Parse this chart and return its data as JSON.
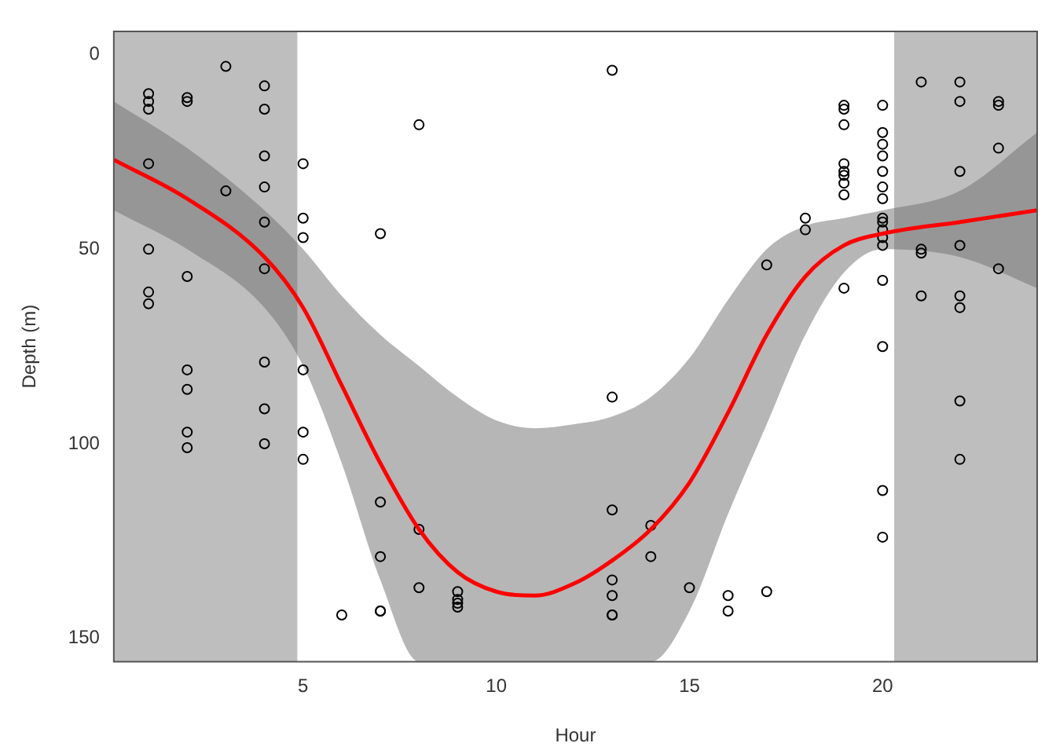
{
  "chart_data": {
    "type": "scatter",
    "xlabel": "Hour",
    "ylabel": "Depth (m)",
    "xlim": [
      0.1,
      24
    ],
    "ylim": [
      156,
      -6
    ],
    "xticks": [
      5,
      10,
      15,
      20
    ],
    "yticks": [
      0,
      50,
      100,
      150
    ],
    "grid": false,
    "legend": false,
    "bands": [
      {
        "axis": "x",
        "from": 0.1,
        "to": 4.85,
        "color": "#bebebe"
      },
      {
        "axis": "x",
        "from": 20.3,
        "to": 24,
        "color": "#bebebe"
      }
    ],
    "series": [
      {
        "marker": "circle",
        "color": "#000000",
        "x": [
          1,
          1,
          1,
          1,
          1,
          1,
          1,
          2,
          2,
          2,
          2,
          2,
          2,
          2,
          3,
          3,
          4,
          4,
          4,
          4,
          4,
          4,
          4,
          4,
          4,
          5,
          5,
          5,
          5,
          5,
          5,
          6,
          7,
          7,
          7,
          7,
          7,
          8,
          8,
          8,
          9,
          9,
          9,
          9,
          13,
          13,
          13,
          13,
          13,
          13,
          13,
          14,
          14,
          15,
          16,
          16,
          17,
          17,
          18,
          18,
          19,
          19,
          19,
          19,
          19,
          19,
          19,
          19,
          19,
          20,
          20,
          20,
          20,
          20,
          20,
          20,
          20,
          20,
          20,
          20,
          20,
          20,
          20,
          20,
          20,
          21,
          21,
          21,
          21,
          22,
          22,
          22,
          22,
          22,
          22,
          22,
          22,
          23,
          23,
          23,
          23
        ],
        "values": [
          10,
          12,
          14,
          28,
          50,
          61,
          64,
          11,
          12,
          57,
          81,
          86,
          97,
          101,
          3,
          35,
          8,
          14,
          26,
          34,
          43,
          55,
          79,
          91,
          100,
          28,
          42,
          47,
          81,
          97,
          104,
          144,
          46,
          115,
          129,
          143,
          143,
          18,
          122,
          137,
          138,
          140,
          141,
          142,
          4,
          88,
          117,
          135,
          139,
          144,
          144,
          121,
          129,
          137,
          139,
          143,
          54,
          138,
          42,
          45,
          13,
          14,
          18,
          28,
          30,
          31,
          33,
          36,
          60,
          13,
          20,
          23,
          26,
          30,
          34,
          37,
          42,
          43,
          45,
          47,
          49,
          58,
          75,
          112,
          124,
          7,
          50,
          51,
          62,
          7,
          12,
          30,
          49,
          62,
          65,
          89,
          104,
          12,
          13,
          24,
          55
        ]
      },
      {
        "type": "line",
        "color": "#ff0000",
        "x": [
          0.1,
          2,
          4,
          5,
          6,
          7,
          8,
          9,
          10,
          11,
          12,
          13,
          14,
          15,
          16,
          17,
          18,
          19,
          20,
          22,
          24
        ],
        "values": [
          27,
          37,
          52,
          65,
          85,
          105,
          122,
          133,
          138,
          139,
          136,
          130,
          122,
          110,
          92,
          72,
          57,
          49,
          46,
          43,
          40
        ],
        "lower": [
          12,
          24,
          40,
          50,
          62,
          72,
          80,
          88,
          94,
          96,
          95,
          93,
          88,
          78,
          63,
          50,
          44,
          42,
          40,
          35,
          20
        ],
        "upper": [
          40,
          50,
          65,
          80,
          105,
          135,
          156,
          156,
          156,
          156,
          156,
          156,
          156,
          143,
          118,
          95,
          72,
          56,
          50,
          52,
          60
        ]
      }
    ]
  }
}
